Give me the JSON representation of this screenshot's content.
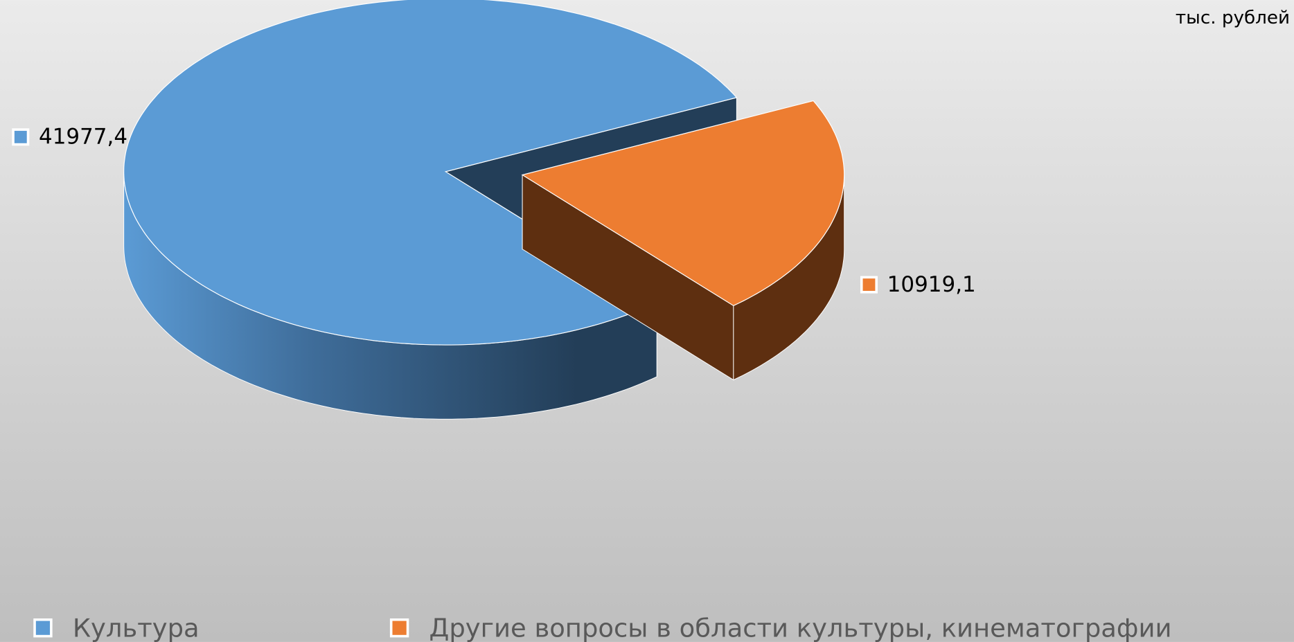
{
  "chart_data": {
    "type": "pie",
    "subtitle": "тыс. рублей",
    "categories": [
      "Культура",
      "Другие вопросы в области культуры, кинематографии"
    ],
    "values": [
      41977.4,
      10919.1
    ],
    "value_labels": [
      "41977,4",
      "10919,1"
    ],
    "colors": [
      "#5b9bd5",
      "#ed7d31"
    ],
    "legend": "bottom"
  }
}
